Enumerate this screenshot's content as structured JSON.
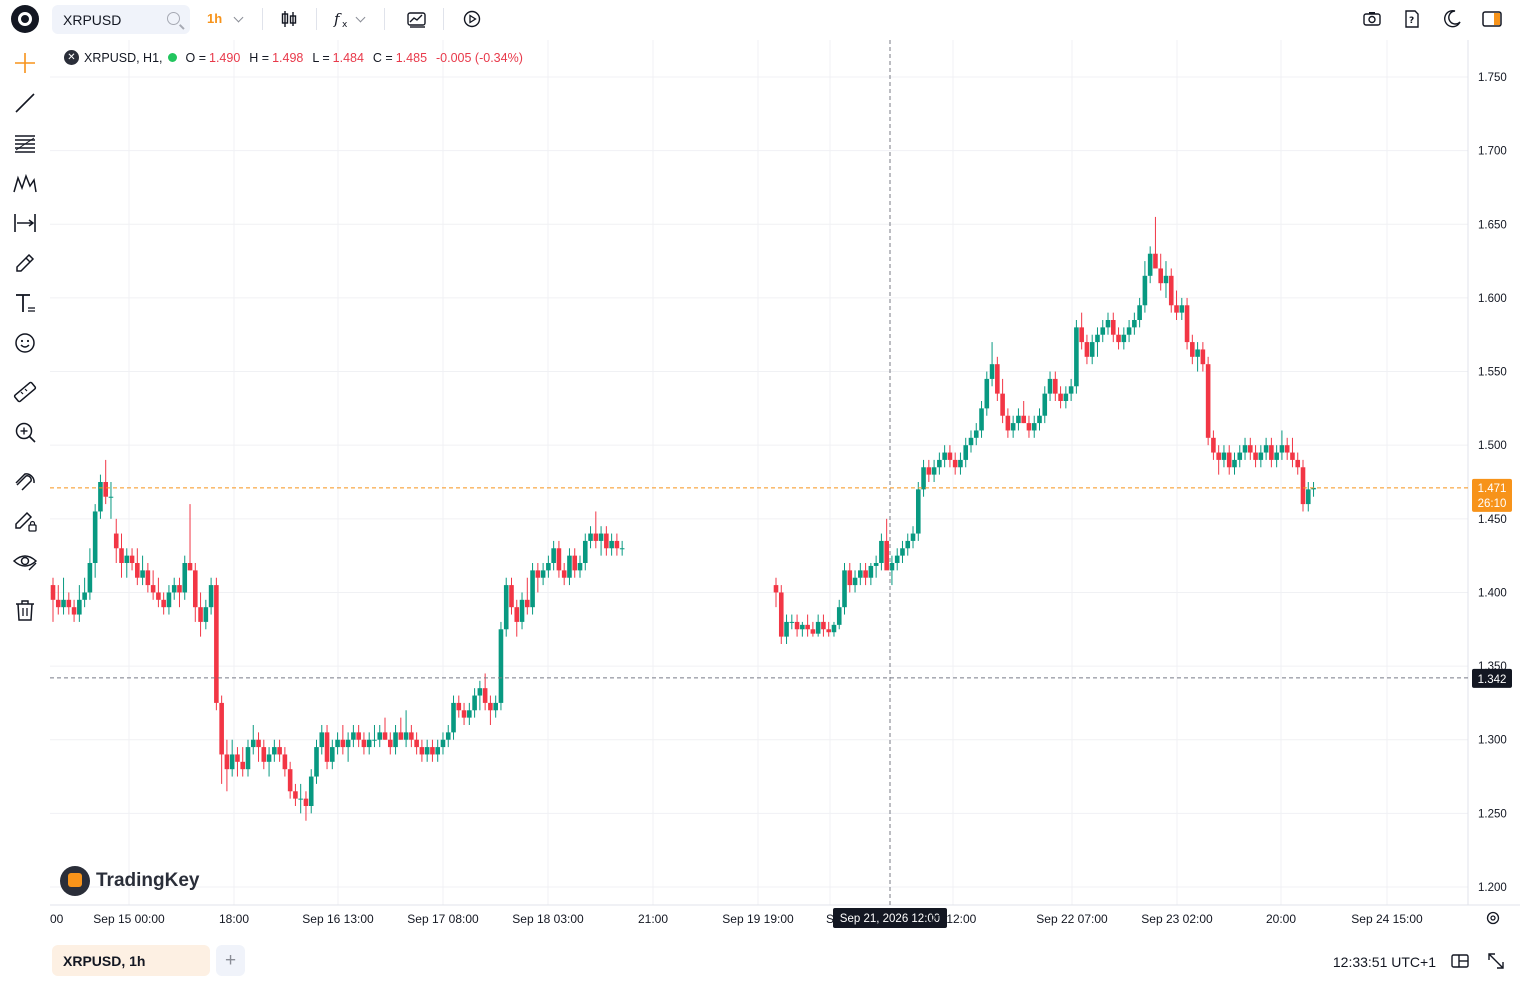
{
  "toolbar": {
    "symbol": "XRPUSD",
    "interval": "1h"
  },
  "legend": {
    "title": "XRPUSD, H1,",
    "open_label": "O =",
    "open": "1.490",
    "high_label": "H =",
    "high": "1.498",
    "low_label": "L =",
    "low": "1.484",
    "close_label": "C =",
    "close": "1.485",
    "change": "-0.005 (-0.34%)"
  },
  "watermark": "TradingKey",
  "price_axis": {
    "ticks": [
      "1.750",
      "1.700",
      "1.650",
      "1.600",
      "1.550",
      "1.500",
      "1.450",
      "1.400",
      "1.350",
      "1.300",
      "1.250",
      "1.200"
    ],
    "last_price": "1.471",
    "countdown": "26:10",
    "crosshair_price": "1.342"
  },
  "time_axis": {
    "ticks": [
      "00",
      "Sep 15 00:00",
      "18:00",
      "Sep 16 13:00",
      "Sep 17 08:00",
      "Sep 18 03:00",
      "21:00",
      "Sep 19 19:00",
      "S",
      "21 12:00",
      "Sep 22 07:00",
      "Sep 23 02:00",
      "20:00",
      "Sep 24 15:00"
    ],
    "crosshair_time": "Sep 21, 2026 12:00"
  },
  "bottom": {
    "tab_label": "XRPUSD, 1h",
    "add_tab": "+",
    "clock": "12:33:51 UTC+1"
  },
  "colors": {
    "up": "#089981",
    "down": "#f23645",
    "accent": "#f7931a"
  },
  "chart_data": {
    "type": "candlestick",
    "ylim": [
      1.19,
      1.77
    ],
    "segments": [
      [
        [
          1.405,
          1.41,
          1.38,
          1.395
        ],
        [
          1.395,
          1.405,
          1.385,
          1.39
        ],
        [
          1.39,
          1.41,
          1.385,
          1.395
        ],
        [
          1.395,
          1.4,
          1.385,
          1.39
        ],
        [
          1.39,
          1.395,
          1.38,
          1.385
        ],
        [
          1.385,
          1.405,
          1.38,
          1.395
        ],
        [
          1.395,
          1.41,
          1.39,
          1.4
        ],
        [
          1.4,
          1.43,
          1.395,
          1.42
        ],
        [
          1.42,
          1.46,
          1.41,
          1.455
        ],
        [
          1.455,
          1.48,
          1.45,
          1.475
        ],
        [
          1.475,
          1.49,
          1.46,
          1.465
        ],
        [
          1.465,
          1.475,
          1.45,
          1.465
        ],
        [
          1.44,
          1.45,
          1.42,
          1.43
        ],
        [
          1.43,
          1.44,
          1.41,
          1.42
        ],
        [
          1.42,
          1.43,
          1.41,
          1.425
        ],
        [
          1.425,
          1.43,
          1.415,
          1.42
        ],
        [
          1.42,
          1.43,
          1.405,
          1.41
        ],
        [
          1.41,
          1.425,
          1.405,
          1.415
        ],
        [
          1.415,
          1.42,
          1.4,
          1.405
        ],
        [
          1.405,
          1.415,
          1.395,
          1.4
        ],
        [
          1.4,
          1.41,
          1.39,
          1.395
        ],
        [
          1.395,
          1.4,
          1.385,
          1.39
        ],
        [
          1.39,
          1.405,
          1.385,
          1.4
        ],
        [
          1.4,
          1.41,
          1.395,
          1.405
        ],
        [
          1.405,
          1.41,
          1.39,
          1.4
        ],
        [
          1.4,
          1.425,
          1.395,
          1.42
        ],
        [
          1.42,
          1.46,
          1.415,
          1.415
        ],
        [
          1.415,
          1.42,
          1.38,
          1.39
        ],
        [
          1.39,
          1.4,
          1.37,
          1.38
        ],
        [
          1.38,
          1.395,
          1.375,
          1.39
        ],
        [
          1.39,
          1.41,
          1.385,
          1.405
        ],
        [
          1.405,
          1.41,
          1.32,
          1.325
        ],
        [
          1.325,
          1.33,
          1.27,
          1.29
        ],
        [
          1.29,
          1.3,
          1.265,
          1.28
        ],
        [
          1.28,
          1.3,
          1.275,
          1.29
        ],
        [
          1.29,
          1.295,
          1.275,
          1.285
        ],
        [
          1.285,
          1.295,
          1.275,
          1.28
        ],
        [
          1.28,
          1.3,
          1.275,
          1.295
        ],
        [
          1.295,
          1.31,
          1.29,
          1.3
        ],
        [
          1.3,
          1.305,
          1.285,
          1.295
        ],
        [
          1.295,
          1.3,
          1.28,
          1.285
        ],
        [
          1.285,
          1.295,
          1.275,
          1.29
        ],
        [
          1.29,
          1.3,
          1.285,
          1.295
        ],
        [
          1.295,
          1.3,
          1.285,
          1.29
        ],
        [
          1.29,
          1.295,
          1.275,
          1.28
        ],
        [
          1.28,
          1.285,
          1.26,
          1.265
        ],
        [
          1.265,
          1.27,
          1.255,
          1.26
        ],
        [
          1.26,
          1.27,
          1.25,
          1.26
        ],
        [
          1.26,
          1.265,
          1.245,
          1.255
        ],
        [
          1.255,
          1.28,
          1.25,
          1.275
        ],
        [
          1.275,
          1.3,
          1.27,
          1.295
        ],
        [
          1.295,
          1.31,
          1.29,
          1.305
        ],
        [
          1.305,
          1.31,
          1.28,
          1.285
        ],
        [
          1.285,
          1.3,
          1.28,
          1.295
        ],
        [
          1.295,
          1.305,
          1.29,
          1.3
        ],
        [
          1.3,
          1.31,
          1.29,
          1.295
        ],
        [
          1.295,
          1.305,
          1.285,
          1.3
        ],
        [
          1.3,
          1.31,
          1.295,
          1.305
        ],
        [
          1.305,
          1.31,
          1.295,
          1.3
        ],
        [
          1.3,
          1.305,
          1.29,
          1.295
        ],
        [
          1.295,
          1.305,
          1.29,
          1.3
        ],
        [
          1.3,
          1.31,
          1.295,
          1.3
        ],
        [
          1.3,
          1.31,
          1.295,
          1.305
        ],
        [
          1.305,
          1.315,
          1.3,
          1.3
        ],
        [
          1.3,
          1.305,
          1.29,
          1.295
        ],
        [
          1.295,
          1.31,
          1.29,
          1.305
        ],
        [
          1.305,
          1.315,
          1.3,
          1.3
        ],
        [
          1.3,
          1.32,
          1.295,
          1.305
        ],
        [
          1.305,
          1.31,
          1.295,
          1.3
        ],
        [
          1.3,
          1.305,
          1.29,
          1.295
        ],
        [
          1.295,
          1.3,
          1.285,
          1.29
        ],
        [
          1.29,
          1.3,
          1.285,
          1.295
        ],
        [
          1.295,
          1.3,
          1.285,
          1.29
        ],
        [
          1.29,
          1.3,
          1.285,
          1.295
        ],
        [
          1.295,
          1.305,
          1.29,
          1.3
        ],
        [
          1.3,
          1.31,
          1.295,
          1.305
        ],
        [
          1.305,
          1.33,
          1.3,
          1.325
        ],
        [
          1.325,
          1.33,
          1.315,
          1.32
        ],
        [
          1.32,
          1.325,
          1.31,
          1.315
        ],
        [
          1.315,
          1.325,
          1.31,
          1.32
        ],
        [
          1.32,
          1.335,
          1.315,
          1.33
        ],
        [
          1.33,
          1.34,
          1.32,
          1.335
        ],
        [
          1.335,
          1.345,
          1.32,
          1.325
        ],
        [
          1.325,
          1.33,
          1.31,
          1.32
        ],
        [
          1.32,
          1.33,
          1.315,
          1.325
        ],
        [
          1.325,
          1.38,
          1.32,
          1.375
        ],
        [
          1.375,
          1.41,
          1.37,
          1.405
        ],
        [
          1.405,
          1.41,
          1.385,
          1.39
        ],
        [
          1.39,
          1.395,
          1.37,
          1.38
        ],
        [
          1.38,
          1.4,
          1.375,
          1.395
        ],
        [
          1.395,
          1.41,
          1.385,
          1.39
        ],
        [
          1.39,
          1.42,
          1.385,
          1.415
        ],
        [
          1.415,
          1.42,
          1.4,
          1.41
        ],
        [
          1.41,
          1.42,
          1.405,
          1.415
        ],
        [
          1.415,
          1.425,
          1.41,
          1.42
        ],
        [
          1.42,
          1.435,
          1.415,
          1.43
        ],
        [
          1.43,
          1.435,
          1.41,
          1.415
        ],
        [
          1.415,
          1.42,
          1.405,
          1.41
        ],
        [
          1.41,
          1.43,
          1.405,
          1.425
        ],
        [
          1.425,
          1.43,
          1.41,
          1.415
        ],
        [
          1.415,
          1.425,
          1.41,
          1.42
        ],
        [
          1.42,
          1.44,
          1.415,
          1.435
        ],
        [
          1.435,
          1.445,
          1.43,
          1.44
        ],
        [
          1.44,
          1.455,
          1.43,
          1.435
        ],
        [
          1.435,
          1.445,
          1.425,
          1.44
        ],
        [
          1.44,
          1.445,
          1.425,
          1.43
        ],
        [
          1.43,
          1.44,
          1.425,
          1.435
        ],
        [
          1.435,
          1.44,
          1.425,
          1.43
        ],
        [
          1.43,
          1.435,
          1.425,
          1.43
        ]
      ],
      [
        [
          1.405,
          1.41,
          1.39,
          1.4
        ],
        [
          1.4,
          1.405,
          1.365,
          1.37
        ],
        [
          1.37,
          1.385,
          1.365,
          1.38
        ],
        [
          1.38,
          1.385,
          1.375,
          1.38
        ],
        [
          1.38,
          1.385,
          1.37,
          1.375
        ],
        [
          1.375,
          1.38,
          1.37,
          1.378
        ],
        [
          1.378,
          1.385,
          1.37,
          1.375
        ],
        [
          1.375,
          1.38,
          1.37,
          1.372
        ],
        [
          1.372,
          1.385,
          1.37,
          1.38
        ],
        [
          1.38,
          1.385,
          1.37,
          1.375
        ],
        [
          1.375,
          1.38,
          1.37,
          1.373
        ],
        [
          1.373,
          1.38,
          1.37,
          1.378
        ],
        [
          1.378,
          1.395,
          1.375,
          1.39
        ],
        [
          1.39,
          1.42,
          1.385,
          1.415
        ],
        [
          1.415,
          1.42,
          1.4,
          1.405
        ],
        [
          1.405,
          1.415,
          1.4,
          1.41
        ],
        [
          1.41,
          1.42,
          1.405,
          1.415
        ],
        [
          1.415,
          1.42,
          1.405,
          1.41
        ],
        [
          1.41,
          1.42,
          1.405,
          1.418
        ],
        [
          1.418,
          1.425,
          1.41,
          1.42
        ],
        [
          1.42,
          1.44,
          1.415,
          1.435
        ],
        [
          1.435,
          1.45,
          1.43,
          1.415
        ],
        [
          1.415,
          1.425,
          1.405,
          1.42
        ],
        [
          1.42,
          1.43,
          1.415,
          1.425
        ],
        [
          1.425,
          1.435,
          1.42,
          1.43
        ],
        [
          1.43,
          1.44,
          1.425,
          1.435
        ],
        [
          1.435,
          1.445,
          1.43,
          1.44
        ],
        [
          1.44,
          1.475,
          1.435,
          1.47
        ],
        [
          1.47,
          1.49,
          1.465,
          1.485
        ],
        [
          1.485,
          1.49,
          1.475,
          1.48
        ],
        [
          1.48,
          1.49,
          1.475,
          1.485
        ],
        [
          1.485,
          1.495,
          1.48,
          1.49
        ],
        [
          1.49,
          1.5,
          1.485,
          1.495
        ],
        [
          1.495,
          1.5,
          1.485,
          1.49
        ],
        [
          1.49,
          1.495,
          1.48,
          1.485
        ],
        [
          1.485,
          1.495,
          1.48,
          1.49
        ],
        [
          1.49,
          1.505,
          1.485,
          1.5
        ],
        [
          1.5,
          1.51,
          1.495,
          1.505
        ],
        [
          1.505,
          1.515,
          1.5,
          1.51
        ],
        [
          1.51,
          1.53,
          1.505,
          1.525
        ],
        [
          1.525,
          1.55,
          1.52,
          1.545
        ],
        [
          1.545,
          1.57,
          1.54,
          1.555
        ],
        [
          1.555,
          1.56,
          1.53,
          1.535
        ],
        [
          1.535,
          1.545,
          1.515,
          1.52
        ],
        [
          1.52,
          1.525,
          1.505,
          1.51
        ],
        [
          1.51,
          1.52,
          1.505,
          1.515
        ],
        [
          1.515,
          1.525,
          1.51,
          1.52
        ],
        [
          1.52,
          1.53,
          1.515,
          1.515
        ],
        [
          1.515,
          1.52,
          1.505,
          1.51
        ],
        [
          1.51,
          1.52,
          1.505,
          1.515
        ],
        [
          1.515,
          1.525,
          1.51,
          1.52
        ],
        [
          1.52,
          1.54,
          1.515,
          1.535
        ],
        [
          1.535,
          1.55,
          1.53,
          1.545
        ],
        [
          1.545,
          1.55,
          1.53,
          1.535
        ],
        [
          1.535,
          1.54,
          1.525,
          1.53
        ],
        [
          1.53,
          1.54,
          1.525,
          1.535
        ],
        [
          1.535,
          1.545,
          1.53,
          1.54
        ],
        [
          1.54,
          1.585,
          1.535,
          1.58
        ],
        [
          1.58,
          1.59,
          1.565,
          1.57
        ],
        [
          1.57,
          1.575,
          1.555,
          1.56
        ],
        [
          1.56,
          1.575,
          1.555,
          1.57
        ],
        [
          1.57,
          1.58,
          1.56,
          1.575
        ],
        [
          1.575,
          1.585,
          1.57,
          1.58
        ],
        [
          1.58,
          1.59,
          1.575,
          1.585
        ],
        [
          1.585,
          1.59,
          1.57,
          1.575
        ],
        [
          1.575,
          1.58,
          1.565,
          1.57
        ],
        [
          1.57,
          1.58,
          1.565,
          1.575
        ],
        [
          1.575,
          1.585,
          1.57,
          1.58
        ],
        [
          1.58,
          1.59,
          1.575,
          1.585
        ],
        [
          1.585,
          1.6,
          1.58,
          1.595
        ],
        [
          1.595,
          1.625,
          1.59,
          1.615
        ],
        [
          1.615,
          1.635,
          1.61,
          1.63
        ],
        [
          1.63,
          1.655,
          1.625,
          1.62
        ],
        [
          1.62,
          1.63,
          1.605,
          1.61
        ],
        [
          1.61,
          1.625,
          1.6,
          1.615
        ],
        [
          1.615,
          1.62,
          1.59,
          1.595
        ],
        [
          1.595,
          1.605,
          1.585,
          1.59
        ],
        [
          1.59,
          1.6,
          1.585,
          1.595
        ],
        [
          1.595,
          1.6,
          1.565,
          1.57
        ],
        [
          1.57,
          1.575,
          1.555,
          1.56
        ],
        [
          1.56,
          1.57,
          1.55,
          1.565
        ],
        [
          1.565,
          1.57,
          1.55,
          1.555
        ],
        [
          1.555,
          1.56,
          1.5,
          1.505
        ],
        [
          1.505,
          1.51,
          1.49,
          1.495
        ],
        [
          1.495,
          1.5,
          1.48,
          1.49
        ],
        [
          1.49,
          1.5,
          1.485,
          1.495
        ],
        [
          1.495,
          1.5,
          1.48,
          1.485
        ],
        [
          1.485,
          1.495,
          1.48,
          1.49
        ],
        [
          1.49,
          1.5,
          1.485,
          1.495
        ],
        [
          1.495,
          1.505,
          1.49,
          1.5
        ],
        [
          1.5,
          1.505,
          1.49,
          1.495
        ],
        [
          1.495,
          1.5,
          1.485,
          1.49
        ],
        [
          1.49,
          1.5,
          1.485,
          1.495
        ],
        [
          1.495,
          1.505,
          1.49,
          1.5
        ],
        [
          1.5,
          1.505,
          1.485,
          1.49
        ],
        [
          1.49,
          1.5,
          1.485,
          1.495
        ],
        [
          1.495,
          1.51,
          1.49,
          1.5
        ],
        [
          1.5,
          1.505,
          1.49,
          1.495
        ],
        [
          1.495,
          1.505,
          1.485,
          1.49
        ],
        [
          1.49,
          1.495,
          1.48,
          1.485
        ],
        [
          1.485,
          1.49,
          1.455,
          1.46
        ],
        [
          1.46,
          1.475,
          1.455,
          1.47
        ],
        [
          1.47,
          1.475,
          1.465,
          1.471
        ]
      ]
    ]
  }
}
